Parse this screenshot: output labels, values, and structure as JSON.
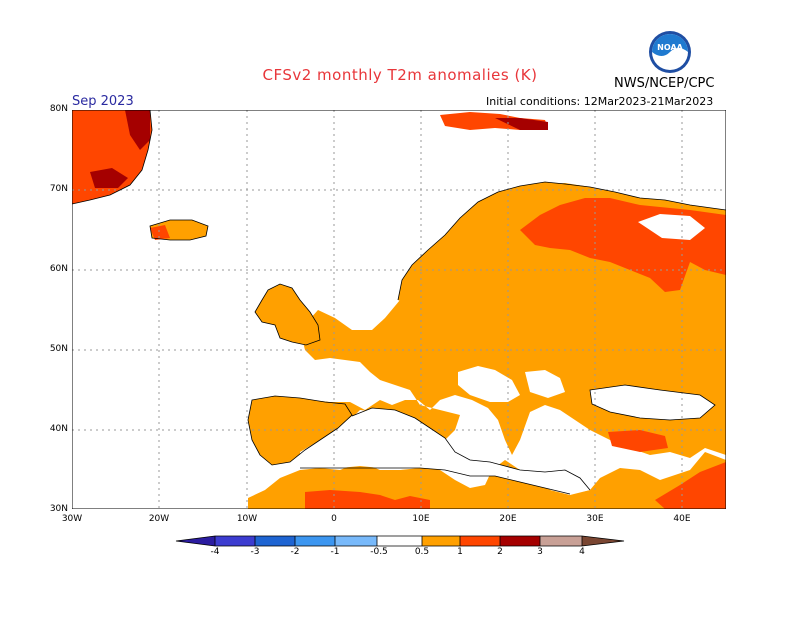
{
  "title": "CFSv2 monthly T2m anomalies (K)",
  "agency": "NWS/NCEP/CPC",
  "logo_text": "NOAA",
  "month_label": "Sep 2023",
  "initial_conditions": "Initial conditions: 12Mar2023-21Mar2023",
  "latitude_labels": [
    "80N",
    "70N",
    "60N",
    "50N",
    "40N",
    "30N"
  ],
  "longitude_labels": [
    "30W",
    "20W",
    "10W",
    "0",
    "10E",
    "20E",
    "30E",
    "40E"
  ],
  "colorbar": {
    "ticks": [
      "-4",
      "-3",
      "-2",
      "-1",
      "-0.5",
      "0.5",
      "1",
      "2",
      "3",
      "4"
    ],
    "colors": [
      "#2b1ca0",
      "#3c3cd0",
      "#1e64d2",
      "#3c96f0",
      "#78b9fa",
      "#ffffff",
      "#ffa000",
      "#ff4600",
      "#a50000",
      "#c8a096",
      "#7a4632"
    ]
  },
  "map_colors": {
    "ocean": "#ffffff",
    "anomaly_0.5_1": "#ffa000",
    "anomaly_1_2": "#ff4600",
    "anomaly_2_3": "#a50000",
    "coast": "#000000"
  }
}
